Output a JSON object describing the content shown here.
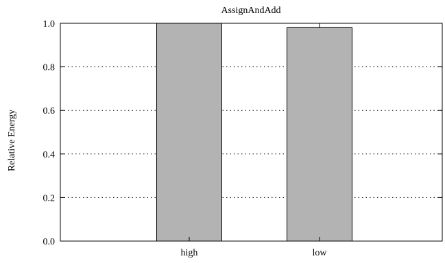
{
  "chart_data": {
    "type": "bar",
    "title": "AssignAndAdd",
    "xlabel": "",
    "ylabel": "Relative Energy",
    "categories": [
      "high",
      "low"
    ],
    "values": [
      1.0,
      0.98
    ],
    "error_upper": [
      null,
      1.0
    ],
    "ylim": [
      0,
      1.0
    ],
    "yticks": [
      "0.0",
      "0.2",
      "0.4",
      "0.6",
      "0.8",
      "1.0"
    ],
    "grid": "horizontal dotted",
    "bar_color": "#b3b3b3",
    "edge_color": "#000000"
  }
}
